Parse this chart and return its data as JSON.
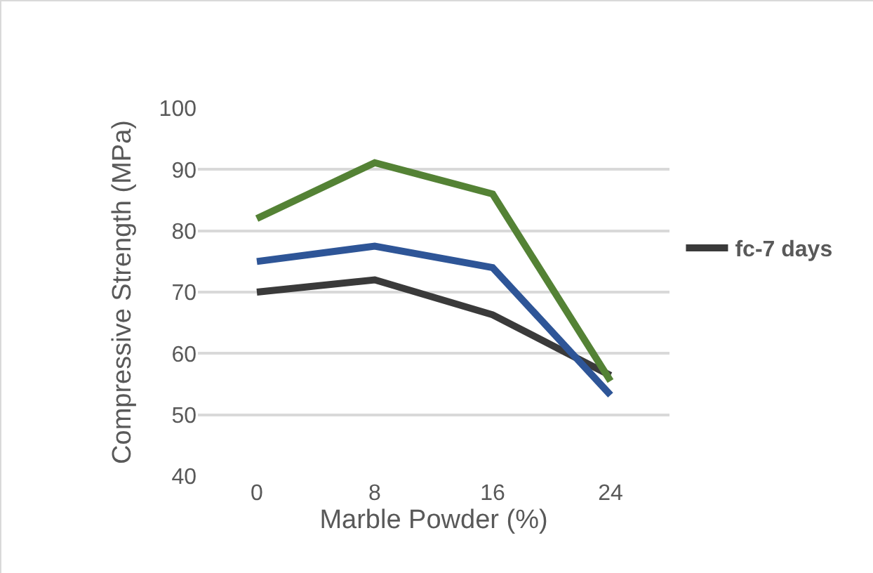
{
  "chart_data": {
    "type": "line",
    "xlabel": "Marble Powder (%)",
    "ylabel": "Compressive Strength (MPa)",
    "categories": [
      "0",
      "8",
      "16",
      "24"
    ],
    "series": [
      {
        "name": "fc-7 days",
        "color": "#3a3a3a",
        "values": [
          70,
          72,
          66.3,
          56.4
        ]
      },
      {
        "color": "#2e5597",
        "values": [
          75,
          77.5,
          74,
          53.2
        ]
      },
      {
        "color": "#548235",
        "values": [
          82,
          91.1,
          86,
          55.5
        ]
      }
    ],
    "ylim": [
      40,
      100
    ],
    "yticks": [
      40,
      50,
      60,
      70,
      80,
      90,
      100
    ],
    "grid": "y",
    "legend": "right",
    "marker": "none"
  }
}
